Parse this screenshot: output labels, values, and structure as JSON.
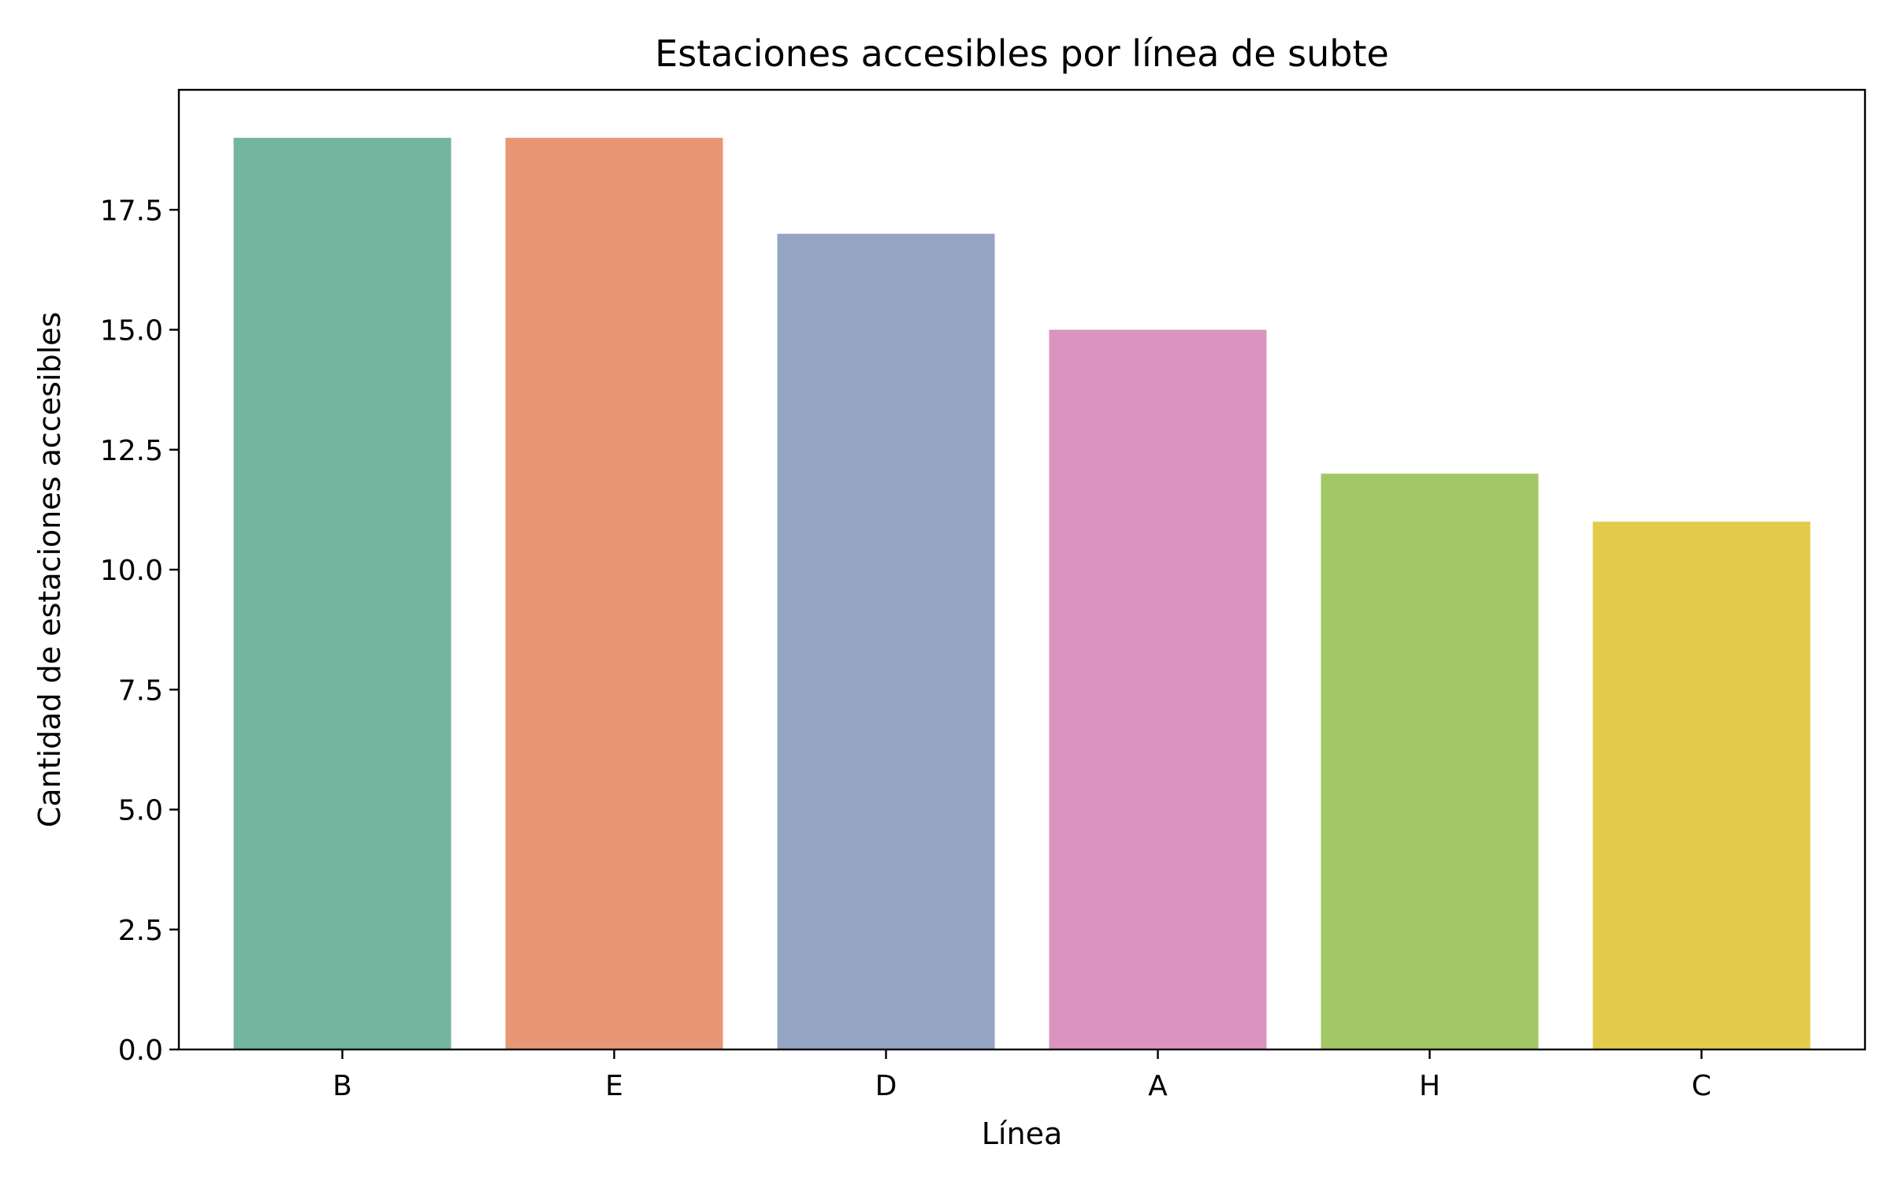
{
  "chart_data": {
    "type": "bar",
    "title": "Estaciones accesibles por línea de subte",
    "xlabel": "Línea",
    "ylabel": "Cantidad de estaciones accesibles",
    "categories": [
      "B",
      "E",
      "D",
      "A",
      "H",
      "C"
    ],
    "values": [
      19,
      19,
      17,
      15,
      12,
      11
    ],
    "colors": [
      "#74b59f",
      "#e89775",
      "#94a4c3",
      "#db94c0",
      "#a2c767",
      "#e4ca4a"
    ],
    "ylim": [
      0,
      20
    ],
    "yticks": [
      0,
      2.5,
      5,
      7.5,
      10,
      12.5,
      15,
      17.5
    ],
    "ytick_labels": [
      "0.0",
      "2.5",
      "5.0",
      "7.5",
      "10.0",
      "12.5",
      "15.0",
      "17.5"
    ],
    "grid": false,
    "legend": "none"
  }
}
